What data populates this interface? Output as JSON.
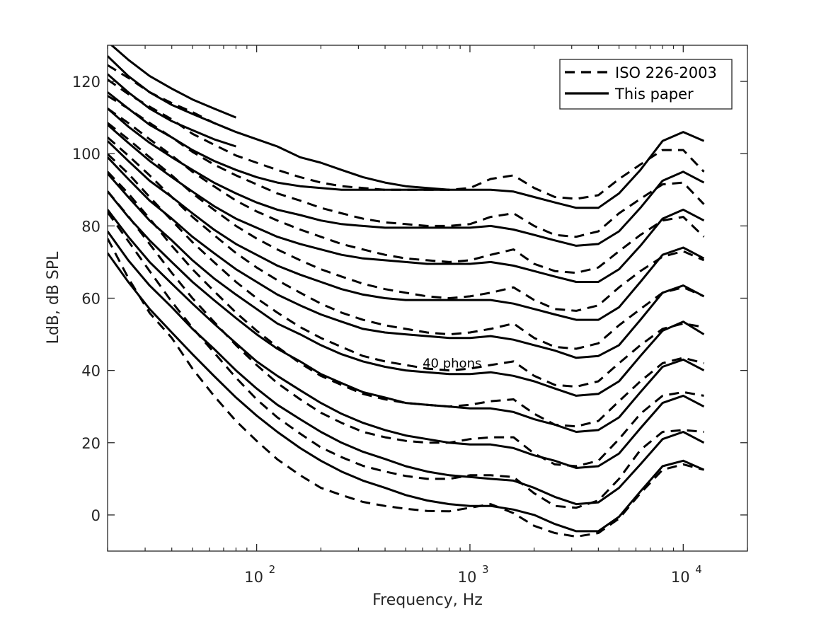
{
  "chart_data": {
    "type": "line",
    "title": "",
    "xlabel": "Frequency, Hz",
    "ylabel": "LdB, dB SPL",
    "xscale": "log",
    "xlim": [
      20,
      20000
    ],
    "ylim": [
      -10,
      130
    ],
    "grid": false,
    "legend_position": "top-right",
    "x_ticks": [
      {
        "value": 100,
        "base": "10",
        "exp": "2"
      },
      {
        "value": 1000,
        "base": "10",
        "exp": "3"
      },
      {
        "value": 10000,
        "base": "10",
        "exp": "4"
      }
    ],
    "y_ticks": [
      0,
      20,
      40,
      60,
      80,
      100,
      120
    ],
    "annotations": [
      {
        "text": "40 phons",
        "x": 600,
        "y": 42
      }
    ],
    "x": [
      20,
      25,
      31.5,
      40,
      50,
      63,
      80,
      100,
      125,
      160,
      200,
      250,
      315,
      400,
      500,
      630,
      800,
      1000,
      1250,
      1600,
      2000,
      2500,
      3150,
      4000,
      5000,
      6300,
      8000,
      10000,
      12500
    ],
    "series": [
      {
        "name": "ISO 226-2003",
        "style": "dashed",
        "curves": [
          {
            "phon": 0,
            "values": [
              76.5,
              65.6,
              55.9,
              49.0,
              40.5,
              33.0,
              26.0,
              20.5,
              15.4,
              11.0,
              7.5,
              5.5,
              3.6,
              2.5,
              1.7,
              1.1,
              1.0,
              2.0,
              3.0,
              0.5,
              -3.0,
              -5.0,
              -6.0,
              -5.0,
              -1.0,
              6.0,
              12.5,
              14.0,
              12.5
            ]
          },
          {
            "phon": 10,
            "values": [
              83.8,
              75.8,
              67.5,
              59.0,
              51.8,
              45.0,
              38.0,
              32.0,
              27.0,
              22.5,
              18.7,
              16.0,
              13.6,
              12.0,
              10.8,
              10.0,
              10.0,
              11.0,
              11.0,
              10.5,
              6.0,
              2.5,
              2.0,
              4.0,
              10.0,
              18.0,
              23.0,
              23.5,
              23.0
            ]
          },
          {
            "phon": 20,
            "values": [
              89.6,
              82.7,
              75.0,
              67.0,
              60.0,
              53.5,
              47.0,
              41.5,
              36.5,
              32.0,
              28.3,
              25.5,
              23.0,
              21.5,
              20.5,
              20.0,
              20.0,
              21.0,
              21.5,
              21.5,
              17.0,
              14.0,
              13.5,
              15.0,
              21.0,
              28.0,
              33.0,
              34.0,
              33.0
            ]
          },
          {
            "phon": 30,
            "values": [
              95.0,
              89.0,
              82.0,
              74.5,
              68.0,
              62.0,
              56.0,
              51.0,
              46.5,
              42.0,
              38.5,
              36.0,
              33.5,
              32.0,
              31.0,
              30.5,
              30.0,
              30.5,
              31.5,
              32.0,
              28.0,
              25.0,
              24.5,
              26.0,
              31.5,
              37.0,
              42.0,
              43.5,
              42.0
            ]
          },
          {
            "phon": 40,
            "values": [
              99.9,
              94.5,
              88.0,
              81.5,
              75.5,
              70.0,
              64.5,
              60.0,
              56.0,
              52.0,
              49.0,
              46.5,
              44.0,
              42.5,
              41.5,
              40.5,
              40.0,
              40.5,
              41.5,
              42.5,
              38.5,
              36.0,
              35.5,
              37.0,
              42.0,
              47.0,
              51.5,
              53.0,
              52.0
            ]
          },
          {
            "phon": 50,
            "values": [
              104.5,
              99.5,
              94.0,
              88.0,
              82.5,
              77.5,
              72.5,
              68.5,
              65.0,
              61.5,
              58.5,
              56.0,
              54.0,
              52.5,
              51.5,
              50.5,
              50.0,
              50.5,
              51.5,
              53.0,
              49.0,
              46.5,
              46.0,
              47.5,
              52.5,
              57.0,
              61.5,
              63.0,
              60.5
            ]
          },
          {
            "phon": 60,
            "values": [
              108.5,
              104.0,
              99.0,
              94.0,
              89.0,
              84.5,
              80.0,
              76.5,
              73.5,
              70.5,
              68.0,
              66.0,
              64.0,
              62.5,
              61.5,
              60.5,
              60.0,
              60.5,
              61.5,
              63.0,
              59.5,
              57.0,
              56.5,
              58.0,
              63.0,
              67.5,
              71.5,
              73.0,
              70.5
            ]
          },
          {
            "phon": 70,
            "values": [
              112.5,
              108.5,
              104.0,
              99.5,
              95.0,
              91.0,
              87.0,
              84.0,
              81.5,
              79.0,
              77.0,
              75.0,
              73.5,
              72.0,
              71.0,
              70.5,
              70.0,
              70.5,
              72.0,
              73.5,
              69.5,
              67.5,
              67.0,
              68.5,
              73.0,
              77.5,
              81.5,
              82.5,
              77.0
            ]
          },
          {
            "phon": 80,
            "values": [
              116.0,
              112.5,
              108.5,
              104.5,
              100.5,
              97.0,
              94.0,
              91.5,
              89.0,
              87.0,
              85.0,
              83.5,
              82.0,
              81.0,
              80.5,
              80.0,
              80.0,
              80.5,
              82.5,
              83.5,
              80.0,
              77.5,
              77.0,
              78.5,
              83.5,
              87.5,
              91.5,
              92.0,
              86.0
            ]
          },
          {
            "phon": 90,
            "values": [
              120.5,
              116.5,
              113.0,
              109.5,
              105.5,
              102.5,
              99.5,
              97.5,
              95.5,
              93.5,
              92.0,
              91.0,
              90.5,
              90.0,
              90.0,
              90.0,
              90.0,
              90.5,
              93.0,
              94.0,
              90.5,
              88.0,
              87.5,
              88.5,
              93.0,
              97.0,
              101.0,
              101.0,
              95.0
            ]
          },
          {
            "phon": 100,
            "values": [
              124.5,
              121.0,
              117.0,
              114.0,
              111.5,
              108.5,
              106.0
            ]
          }
        ]
      },
      {
        "name": "This paper",
        "style": "solid",
        "curves": [
          {
            "phon": 0,
            "values": [
              72.5,
              64.5,
              57.0,
              50.5,
              44.5,
              38.5,
              32.5,
              27.5,
              23.0,
              18.5,
              15.0,
              12.0,
              9.5,
              7.5,
              5.5,
              4.0,
              3.0,
              2.5,
              2.5,
              1.5,
              0.0,
              -2.5,
              -4.5,
              -4.5,
              -0.5,
              6.5,
              13.5,
              15.0,
              12.5
            ]
          },
          {
            "phon": 10,
            "values": [
              78.5,
              70.5,
              63.5,
              57.5,
              51.5,
              46.0,
              40.0,
              35.0,
              30.5,
              26.5,
              23.0,
              20.0,
              17.5,
              15.5,
              13.5,
              12.0,
              11.0,
              10.5,
              10.0,
              9.5,
              7.5,
              5.0,
              3.0,
              3.5,
              7.5,
              14.0,
              21.0,
              23.0,
              20.0
            ]
          },
          {
            "phon": 20,
            "values": [
              84.5,
              77.0,
              70.0,
              64.0,
              58.5,
              53.0,
              47.5,
              42.5,
              38.5,
              34.5,
              31.0,
              28.0,
              25.5,
              23.5,
              22.0,
              21.0,
              20.0,
              19.5,
              19.5,
              18.5,
              16.5,
              15.0,
              13.0,
              13.5,
              17.0,
              24.0,
              31.0,
              33.0,
              30.0
            ]
          },
          {
            "phon": 30,
            "values": [
              89.5,
              82.5,
              76.0,
              70.0,
              64.5,
              59.5,
              54.5,
              50.0,
              46.0,
              42.5,
              39.0,
              36.5,
              34.0,
              32.5,
              31.0,
              30.5,
              30.0,
              29.5,
              29.5,
              28.5,
              26.5,
              25.0,
              23.0,
              23.5,
              27.0,
              34.0,
              41.0,
              43.0,
              40.0
            ]
          },
          {
            "phon": 40,
            "values": [
              94.5,
              88.0,
              81.5,
              76.0,
              70.5,
              65.5,
              61.0,
              57.0,
              53.0,
              50.0,
              47.0,
              44.5,
              42.5,
              41.0,
              40.0,
              39.5,
              39.0,
              39.0,
              39.5,
              38.5,
              37.0,
              35.0,
              33.0,
              33.5,
              37.0,
              44.0,
              51.0,
              53.5,
              50.0
            ]
          },
          {
            "phon": 50,
            "values": [
              99.0,
              93.0,
              87.0,
              82.0,
              77.0,
              72.5,
              68.0,
              64.5,
              61.0,
              58.0,
              55.5,
              53.5,
              51.5,
              50.5,
              50.0,
              49.5,
              49.0,
              49.0,
              49.5,
              48.5,
              47.0,
              45.5,
              43.5,
              44.0,
              47.0,
              54.0,
              61.5,
              63.5,
              60.5
            ]
          },
          {
            "phon": 60,
            "values": [
              103.5,
              98.0,
              92.5,
              88.0,
              83.5,
              79.0,
              75.0,
              72.0,
              69.0,
              66.5,
              64.5,
              62.5,
              61.0,
              60.0,
              59.5,
              59.5,
              59.5,
              59.5,
              59.5,
              58.5,
              57.0,
              55.5,
              54.0,
              54.0,
              57.5,
              64.5,
              72.0,
              74.0,
              71.0
            ]
          },
          {
            "phon": 70,
            "values": [
              108.0,
              103.0,
              98.0,
              93.5,
              89.5,
              85.5,
              82.0,
              79.5,
              77.0,
              75.0,
              73.5,
              72.0,
              71.0,
              70.5,
              70.0,
              69.5,
              69.5,
              69.5,
              70.0,
              69.0,
              67.5,
              66.0,
              64.5,
              64.5,
              68.0,
              74.5,
              82.0,
              84.5,
              81.5
            ]
          },
          {
            "phon": 80,
            "values": [
              112.5,
              107.5,
              103.0,
              99.0,
              95.5,
              92.0,
              89.0,
              86.5,
              84.5,
              83.0,
              81.5,
              80.5,
              80.0,
              79.5,
              79.5,
              79.5,
              79.5,
              79.5,
              80.0,
              79.0,
              77.5,
              76.0,
              74.5,
              75.0,
              78.5,
              85.0,
              92.5,
              95.0,
              92.0
            ]
          },
          {
            "phon": 90,
            "values": [
              117.0,
              112.5,
              108.0,
              104.5,
              101.0,
              98.0,
              95.5,
              93.5,
              92.0,
              91.0,
              90.5,
              90.0,
              90.0,
              90.0,
              90.0,
              90.0,
              90.0,
              90.0,
              90.0,
              89.5,
              88.0,
              86.5,
              85.0,
              85.0,
              89.0,
              95.5,
              103.5,
              106.0,
              103.5
            ]
          },
          {
            "phon": 100,
            "values": [
              122.0,
              117.0,
              112.5,
              109.0,
              106.5,
              104.0,
              102.0
            ]
          },
          {
            "phon": 110,
            "values": [
              127.0,
              121.5,
              117.0,
              113.5,
              111.0,
              108.5,
              106.0,
              104.0,
              102.0,
              99.0,
              97.5,
              95.5,
              93.5,
              92.0,
              91.0,
              90.5,
              90.0
            ]
          },
          {
            "phon": 120,
            "values": [
              131.0,
              126.0,
              121.5,
              118.0,
              115.0,
              112.5,
              110.0
            ]
          }
        ]
      }
    ]
  }
}
